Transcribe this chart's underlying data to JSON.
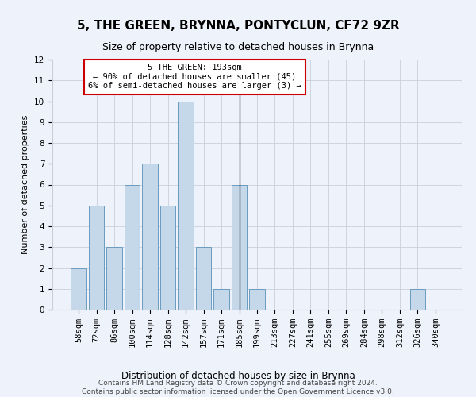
{
  "title": "5, THE GREEN, BRYNNA, PONTYCLUN, CF72 9ZR",
  "subtitle": "Size of property relative to detached houses in Brynna",
  "xlabel": "Distribution of detached houses by size in Brynna",
  "ylabel": "Number of detached properties",
  "categories": [
    "58sqm",
    "72sqm",
    "86sqm",
    "100sqm",
    "114sqm",
    "128sqm",
    "142sqm",
    "157sqm",
    "171sqm",
    "185sqm",
    "199sqm",
    "213sqm",
    "227sqm",
    "241sqm",
    "255sqm",
    "269sqm",
    "284sqm",
    "298sqm",
    "312sqm",
    "326sqm",
    "340sqm"
  ],
  "values": [
    2,
    5,
    3,
    6,
    7,
    5,
    10,
    3,
    1,
    6,
    1,
    0,
    0,
    0,
    0,
    0,
    0,
    0,
    0,
    1,
    0
  ],
  "bar_color": "#c5d8ea",
  "bar_edge_color": "#6a9bbf",
  "highlight_index": 9,
  "ylim": [
    0,
    12
  ],
  "yticks": [
    0,
    1,
    2,
    3,
    4,
    5,
    6,
    7,
    8,
    9,
    10,
    11,
    12
  ],
  "grid_color": "#c8d0dc",
  "background_color": "#eef2fa",
  "annotation_text": "5 THE GREEN: 193sqm\n← 90% of detached houses are smaller (45)\n6% of semi-detached houses are larger (3) →",
  "annotation_box_color": "#ffffff",
  "annotation_box_edge_color": "#cc0000",
  "annotation_fontsize": 7.5,
  "footer_text": "Contains HM Land Registry data © Crown copyright and database right 2024.\nContains public sector information licensed under the Open Government Licence v3.0.",
  "marker_color": "#333333",
  "title_fontsize": 11,
  "subtitle_fontsize": 9,
  "ylabel_fontsize": 8,
  "xlabel_fontsize": 8.5,
  "tick_fontsize": 7.5,
  "footer_fontsize": 6.5
}
